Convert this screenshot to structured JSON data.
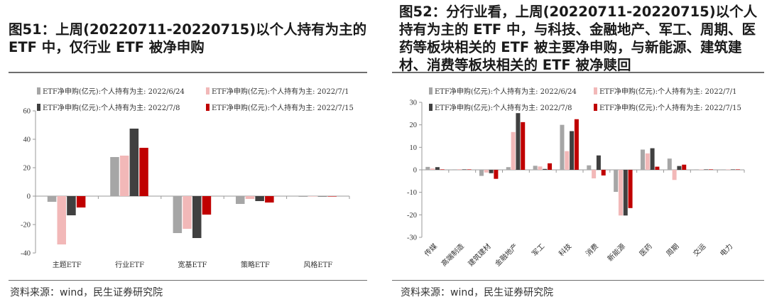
{
  "left": {
    "title": "图51：上周(20220711-20220715)以个人持有为主的 ETF 中，仅行业 ETF 被净申购",
    "source": "资料来源：wind，民生证券研究院"
  },
  "right": {
    "title": "图52：分行业看，上周(20220711-20220715)以个人持有为主的 ETF 中，与科技、金融地产、军工、周期、医药等板块相关的 ETF 被主要净申购，与新能源、建筑建材、消费等板块相关的 ETF 被净赎回",
    "source": "资料来源：wind，民生证券研究院"
  },
  "colors": [
    "#a6a6a6",
    "#f2b8b8",
    "#404040",
    "#c00000"
  ],
  "chart_data": [
    {
      "type": "bar",
      "categories": [
        "主题ETF",
        "行业ETF",
        "宽基ETF",
        "策略ETF",
        "风格ETF"
      ],
      "series": [
        {
          "name": "ETF净申购(亿元):个人持有为主: 2022/6/24",
          "values": [
            -4,
            27.5,
            -26,
            -5.5,
            -0.5
          ]
        },
        {
          "name": "ETF净申购(亿元):个人持有为主: 2022/7/1",
          "values": [
            -34,
            28.5,
            -23,
            -2,
            -0.3
          ]
        },
        {
          "name": "ETF净申购(亿元):个人持有为主: 2022/7/8",
          "values": [
            -13.5,
            47.5,
            -29.5,
            -3.5,
            -0.3
          ]
        },
        {
          "name": "ETF净申购(亿元):个人持有为主: 2022/7/15",
          "values": [
            -8,
            34,
            -13,
            -4.5,
            -0.3
          ]
        }
      ],
      "ylim": [
        -40,
        60
      ],
      "yticks": [
        "-40",
        "-20",
        "0",
        "20",
        "40",
        "60"
      ],
      "legend_position": "top"
    },
    {
      "type": "bar",
      "categories": [
        "传媒",
        "高端制造",
        "建筑建材",
        "金融地产",
        "军工",
        "科技",
        "消费",
        "新能源",
        "医药",
        "周期",
        "交运",
        "电力"
      ],
      "series": [
        {
          "name": "ETF净申购(亿元):个人持有为主: 2022/6/24",
          "values": [
            1.3,
            0.2,
            -2.7,
            1.2,
            1.8,
            20,
            2,
            -9.8,
            9,
            5,
            0.2,
            0.1
          ]
        },
        {
          "name": "ETF净申购(亿元):个人持有为主: 2022/7/1",
          "values": [
            0.6,
            0.3,
            -1.2,
            16.8,
            1.5,
            8.3,
            -3.8,
            -20.3,
            7.3,
            -4.5,
            0.1,
            0.1
          ]
        },
        {
          "name": "ETF净申购(亿元):个人持有为主: 2022/7/8",
          "values": [
            1.2,
            0.2,
            -1.5,
            25.2,
            0.4,
            17.2,
            6.4,
            -20.3,
            9.6,
            1.7,
            0.1,
            0.1
          ]
        },
        {
          "name": "ETF净申购(亿元):个人持有为主: 2022/7/15",
          "values": [
            0.1,
            0.1,
            -4,
            21.2,
            2.9,
            22.5,
            -2.5,
            -17,
            1.4,
            2.3,
            0.2,
            0.1
          ]
        }
      ],
      "ylim": [
        -30,
        30
      ],
      "yticks": [
        "-30",
        "-20",
        "-10",
        "0",
        "10",
        "20",
        "30"
      ],
      "legend_position": "top"
    }
  ]
}
